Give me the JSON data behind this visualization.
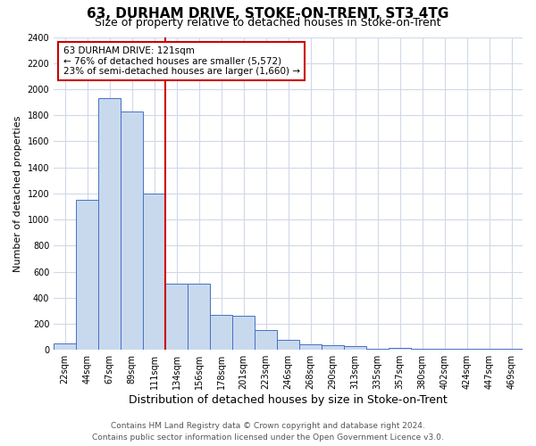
{
  "title": "63, DURHAM DRIVE, STOKE-ON-TRENT, ST3 4TG",
  "subtitle": "Size of property relative to detached houses in Stoke-on-Trent",
  "xlabel": "Distribution of detached houses by size in Stoke-on-Trent",
  "ylabel": "Number of detached properties",
  "categories": [
    "22sqm",
    "44sqm",
    "67sqm",
    "89sqm",
    "111sqm",
    "134sqm",
    "156sqm",
    "178sqm",
    "201sqm",
    "223sqm",
    "246sqm",
    "268sqm",
    "290sqm",
    "313sqm",
    "335sqm",
    "357sqm",
    "380sqm",
    "402sqm",
    "424sqm",
    "447sqm",
    "469sqm"
  ],
  "values": [
    50,
    1150,
    1930,
    1830,
    1200,
    510,
    510,
    270,
    260,
    155,
    75,
    40,
    35,
    30,
    5,
    15,
    10,
    5,
    5,
    5,
    5
  ],
  "bar_color": "#c9d9ed",
  "bar_edge_color": "#4472c4",
  "marker_line_color": "#cc0000",
  "marker_label": "63 DURHAM DRIVE: 121sqm",
  "annotation_line1": "← 76% of detached houses are smaller (5,572)",
  "annotation_line2": "23% of semi-detached houses are larger (1,660) →",
  "annotation_box_color": "#ffffff",
  "annotation_box_edge": "#cc0000",
  "ylim": [
    0,
    2400
  ],
  "yticks": [
    0,
    200,
    400,
    600,
    800,
    1000,
    1200,
    1400,
    1600,
    1800,
    2000,
    2200,
    2400
  ],
  "footer_line1": "Contains HM Land Registry data © Crown copyright and database right 2024.",
  "footer_line2": "Contains public sector information licensed under the Open Government Licence v3.0.",
  "title_fontsize": 11,
  "subtitle_fontsize": 9,
  "xlabel_fontsize": 9,
  "ylabel_fontsize": 8,
  "tick_fontsize": 7,
  "annotation_fontsize": 7.5,
  "footer_fontsize": 6.5,
  "bg_color": "#ffffff",
  "grid_color": "#d0d8e8"
}
